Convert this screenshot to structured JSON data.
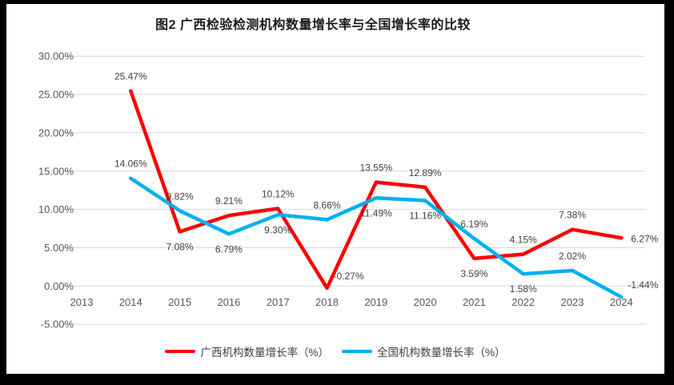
{
  "chart_data": {
    "type": "line",
    "title": "图2 广西检验检测机构数量增长率与全国增长率的比较",
    "categories": [
      "2013",
      "2014",
      "2015",
      "2016",
      "2017",
      "2018",
      "2019",
      "2020",
      "2021",
      "2022",
      "2023",
      "2024"
    ],
    "series": [
      {
        "name": "广西机构数量增长率（%）",
        "color": "#fe0000",
        "values": [
          null,
          25.47,
          7.08,
          9.21,
          10.12,
          -0.27,
          13.55,
          12.89,
          3.59,
          4.15,
          7.38,
          6.27
        ],
        "labels": [
          null,
          "25.47%",
          "7.08%",
          "9.21%",
          "10.12%",
          "-0.27%",
          "13.55%",
          "12.89%",
          "3.59%",
          "4.15%",
          "7.38%",
          "6.27%"
        ],
        "label_pos": [
          null,
          "above",
          "below",
          "above",
          "above",
          "above-right",
          "above",
          "above",
          "below",
          "above",
          "above",
          "right"
        ]
      },
      {
        "name": "全国机构数量增长率（%）",
        "color": "#00b0f0",
        "values": [
          null,
          14.06,
          9.82,
          6.79,
          9.3,
          8.66,
          11.49,
          11.16,
          6.19,
          1.58,
          2.02,
          -1.44
        ],
        "labels": [
          null,
          "14.06%",
          "9.82%",
          "6.79%",
          "9.30%",
          "8.66%",
          "11.49%",
          "11.16%",
          "6.19%",
          "1.58%",
          "2.02%",
          "-1.44%"
        ],
        "label_pos": [
          null,
          "above",
          "above",
          "below",
          "below",
          "above",
          "below",
          "below",
          "above",
          "below",
          "above",
          "above-right"
        ]
      }
    ],
    "xlabel": "",
    "ylabel": "",
    "ylim": [
      -5,
      30
    ],
    "ytick_step": 5,
    "ytick_labels": [
      "30.00%",
      "25.00%",
      "20.00%",
      "15.00%",
      "10.00%",
      "5.00%",
      "0.00%",
      "-5.00%"
    ],
    "grid": true,
    "legend_position": "bottom",
    "frame_color": "#000000"
  }
}
